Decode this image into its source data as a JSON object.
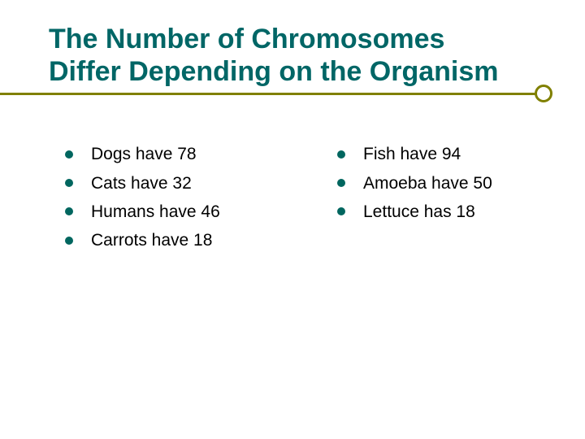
{
  "title_line1": "The Number of Chromosomes",
  "title_line2": "Differ Depending on the Organism",
  "colors": {
    "title": "#006666",
    "underline": "#808000",
    "bullet": "#00665f",
    "text": "#000000",
    "background": "#ffffff"
  },
  "typography": {
    "title_fontsize": 34,
    "title_weight": "bold",
    "item_fontsize": 21,
    "font_family": "Arial"
  },
  "layout": {
    "bullet_size": 10,
    "underline_height": 3,
    "circle_diameter": 22,
    "circle_border": 3
  },
  "left_column": [
    "Dogs have 78",
    "Cats have 32",
    "Humans have 46",
    "Carrots have 18"
  ],
  "right_column": [
    "Fish have 94",
    "Amoeba have 50",
    "Lettuce has 18"
  ]
}
